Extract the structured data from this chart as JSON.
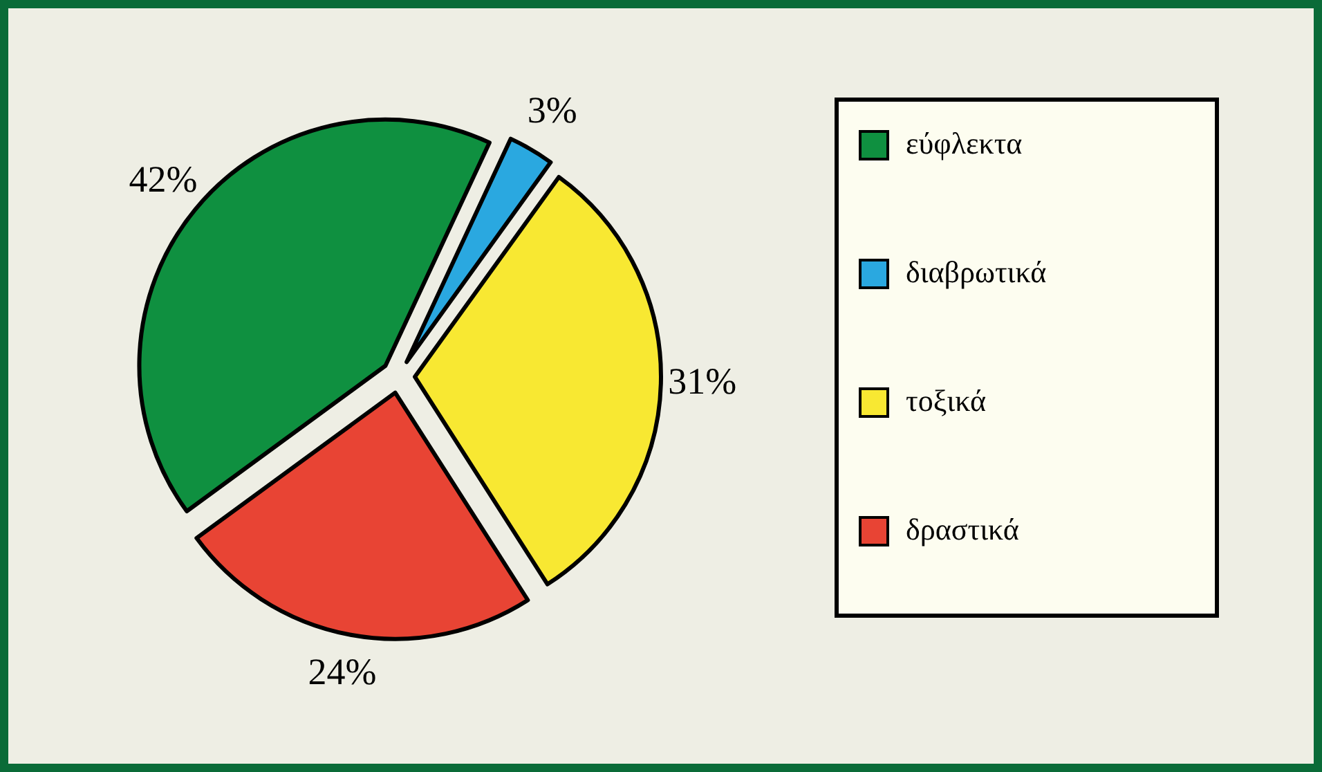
{
  "chart_data": {
    "type": "pie",
    "categories": [
      "εύφλεκτα",
      "διαβρωτικά",
      "τοξικά",
      "δραστικά"
    ],
    "values": [
      42,
      3,
      31,
      24
    ],
    "colors": [
      "#0f9040",
      "#2aa8e0",
      "#f8e832",
      "#e84434"
    ],
    "value_labels": [
      "42%",
      "3%",
      "31%",
      "24%"
    ],
    "legend": "right"
  }
}
